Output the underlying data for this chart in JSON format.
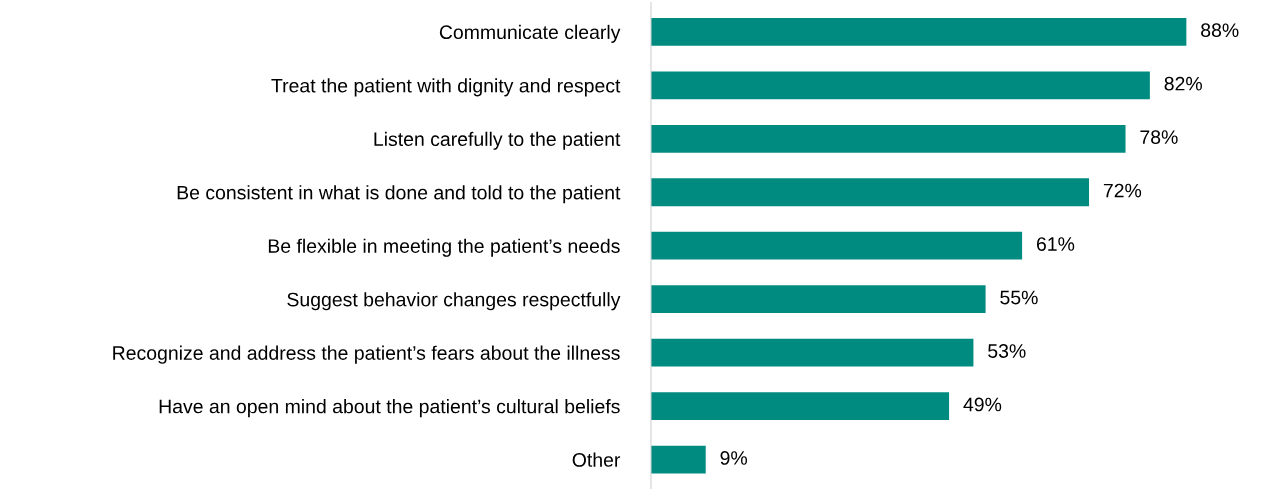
{
  "chart_data": {
    "type": "bar",
    "orientation": "horizontal",
    "categories": [
      "Communicate clearly",
      "Treat the patient with dignity and respect",
      "Listen carefully to the patient",
      "Be consistent in what is done and told to the patient",
      "Be flexible in meeting the patient’s needs",
      "Suggest behavior changes respectfully",
      "Recognize and address the patient’s fears about the illness",
      "Have an open mind about the patient’s cultural beliefs",
      "Other"
    ],
    "values": [
      88,
      82,
      78,
      72,
      61,
      55,
      53,
      49,
      9
    ],
    "value_labels": [
      "88%",
      "82%",
      "78%",
      "72%",
      "61%",
      "55%",
      "53%",
      "49%",
      "9%"
    ],
    "color": "#008b80",
    "grid": false,
    "legend": false
  }
}
